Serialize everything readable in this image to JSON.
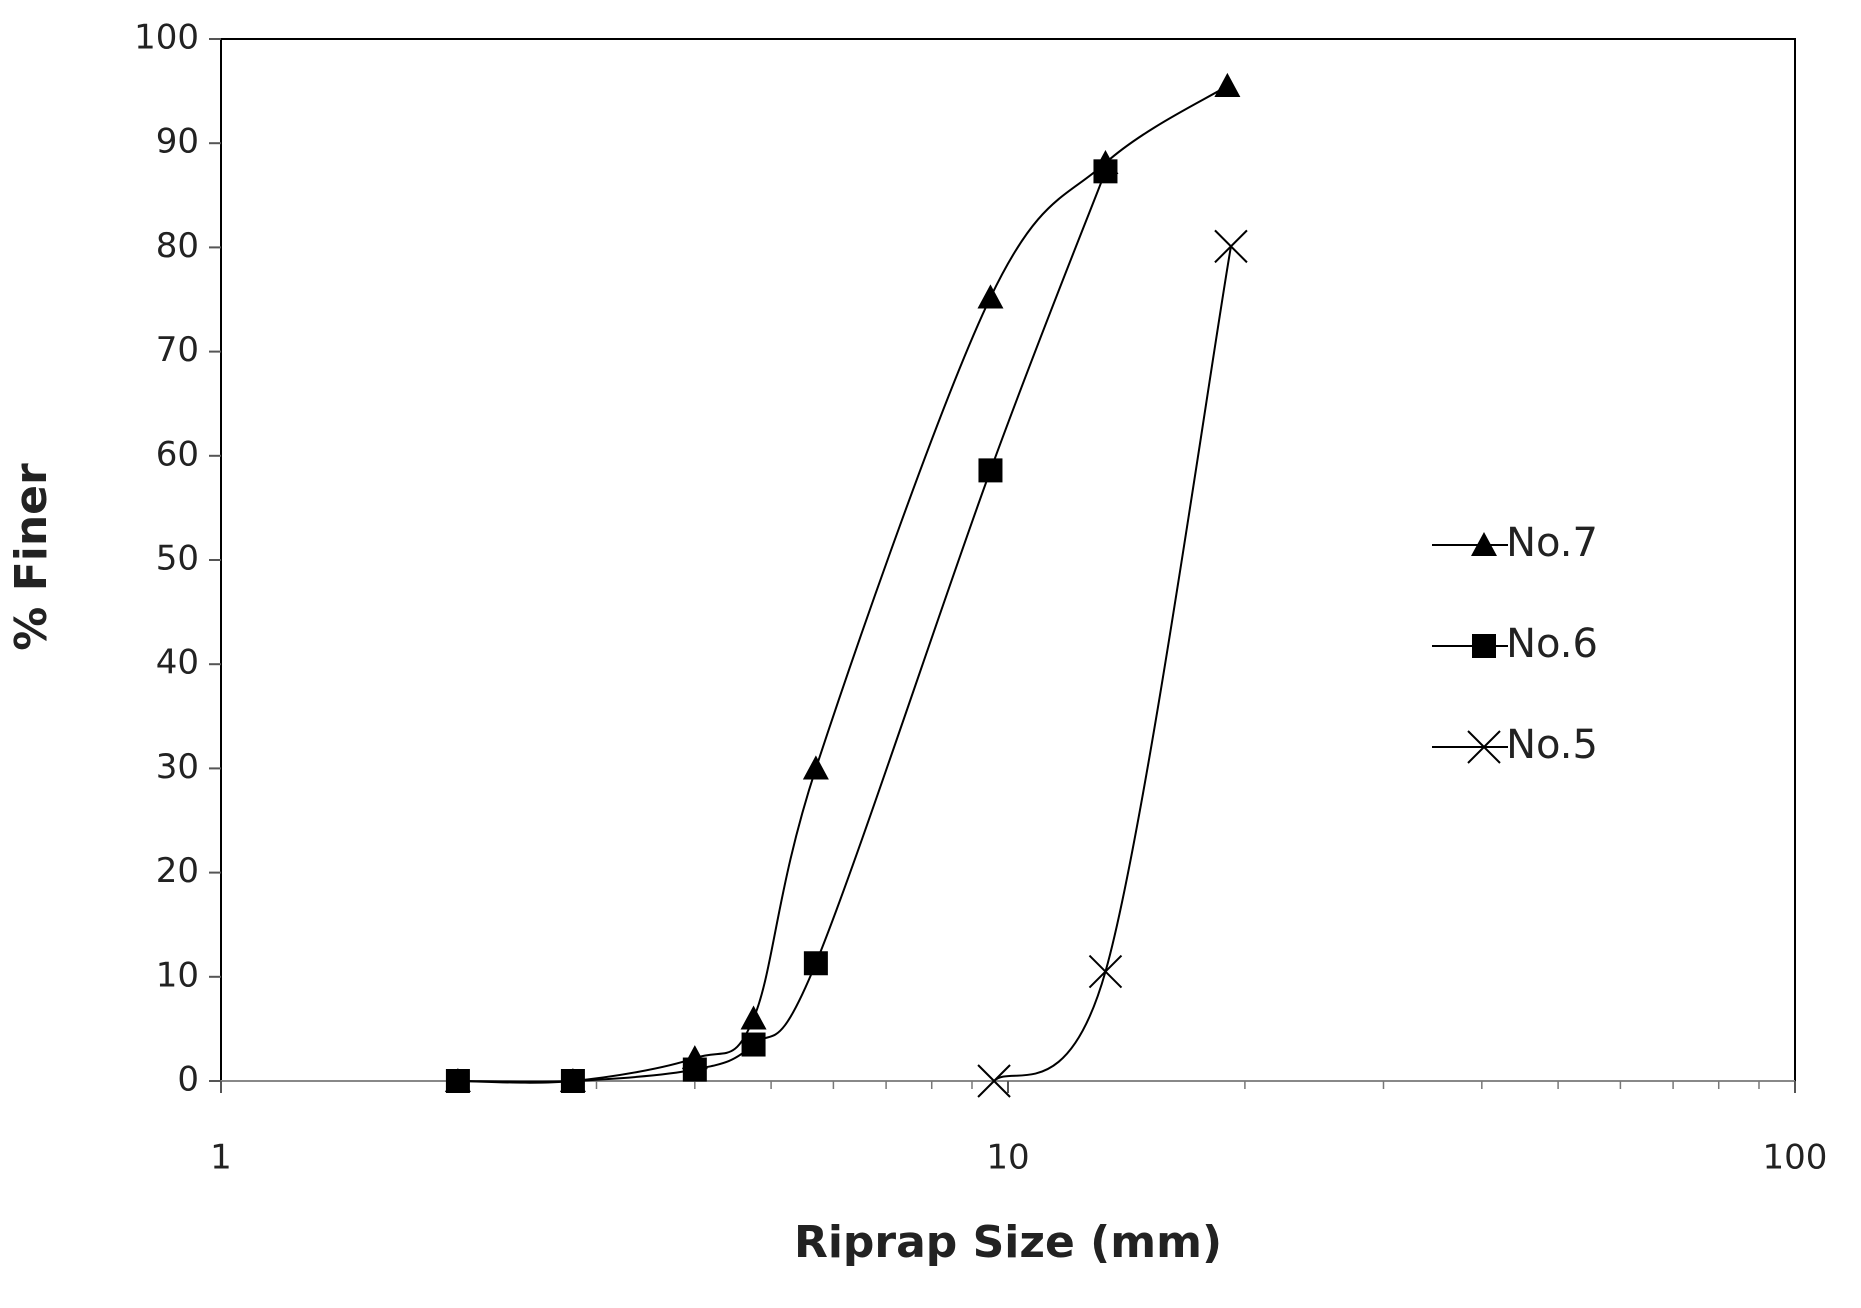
{
  "chart_data": {
    "type": "line",
    "x_label": "Riprap Size (mm)",
    "y_label": "% Finer",
    "xscale": "log",
    "xlim": [
      1,
      100
    ],
    "xticks": [
      1,
      10,
      100
    ],
    "ylim": [
      0,
      100
    ],
    "yticks": [
      0,
      10,
      20,
      30,
      40,
      50,
      60,
      70,
      80,
      90,
      100
    ],
    "smooth": true,
    "legend": "right",
    "series": [
      {
        "name": "No.7",
        "color": "#000000",
        "marker": "triangle",
        "x": [
          2,
          2.8,
          4,
          4.75,
          5.7,
          9.5,
          13.3,
          19
        ],
        "values": [
          0,
          0,
          2.2,
          6,
          30,
          75.2,
          88.1,
          95.5
        ]
      },
      {
        "name": "No.6",
        "color": "#000000",
        "marker": "square",
        "x": [
          2,
          2.8,
          4,
          4.75,
          5.7,
          9.5,
          13.3
        ],
        "values": [
          0,
          0,
          1.1,
          3.5,
          11.3,
          58.6,
          87.3
        ]
      },
      {
        "name": "No.5",
        "color": "#000000",
        "marker": "x",
        "x": [
          9.6,
          13.3,
          19.2
        ],
        "values": [
          0,
          10.5,
          80.1
        ]
      }
    ]
  }
}
